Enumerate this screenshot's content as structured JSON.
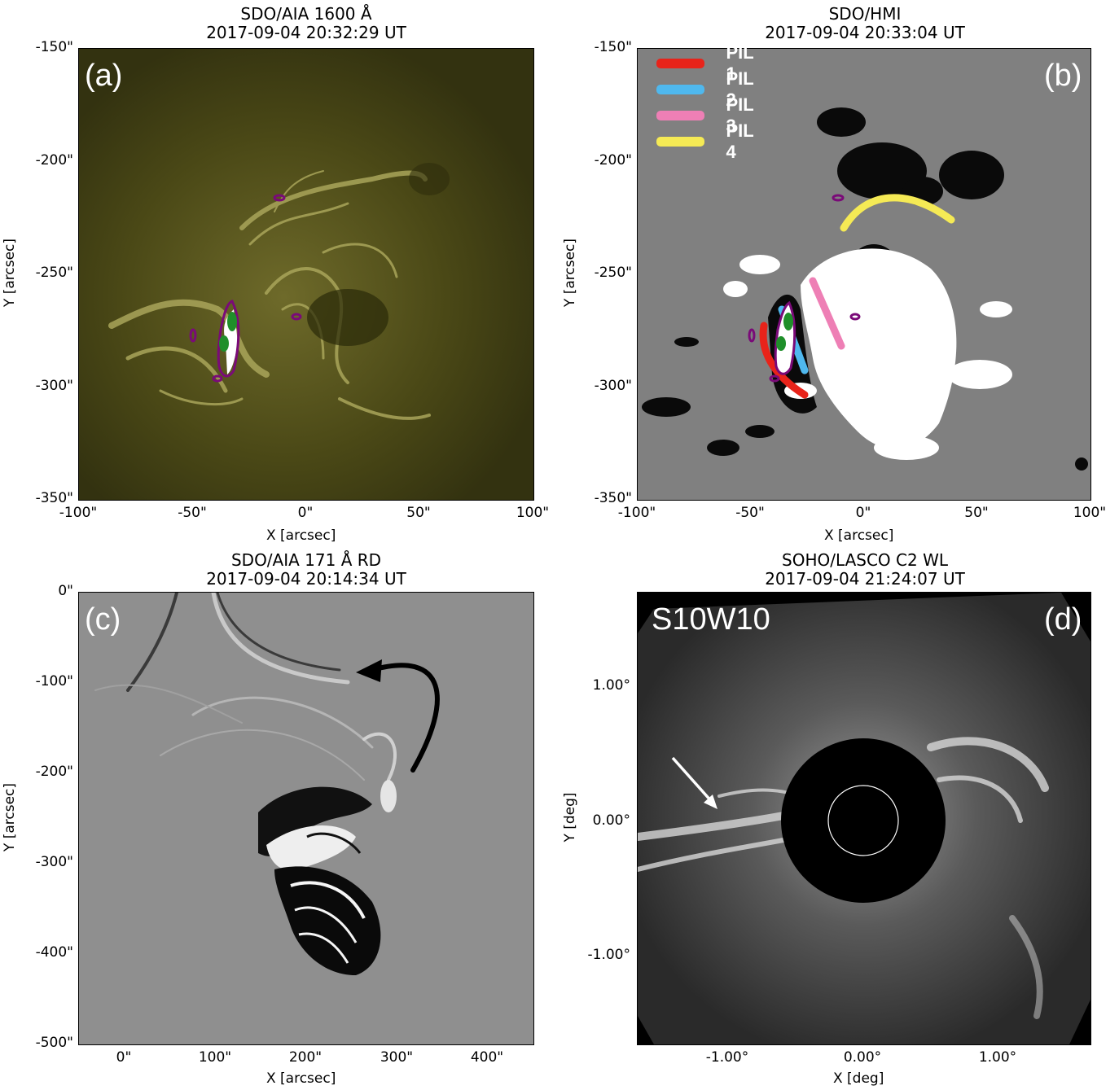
{
  "panels": {
    "a": {
      "title": "SDO/AIA 1600 Å",
      "time": "2017-09-04 20:32:29 UT",
      "label": "(a)",
      "xlabel": "X [arcsec]",
      "ylabel": "Y [arcsec]",
      "xticks": [
        "-100\"",
        "-50\"",
        "0\"",
        "50\"",
        "100\""
      ],
      "yticks": [
        "-150\"",
        "-200\"",
        "-250\"",
        "-300\"",
        "-350\""
      ]
    },
    "b": {
      "title": "SDO/HMI",
      "time": "2017-09-04 20:33:04 UT",
      "label": "(b)",
      "xlabel": "X [arcsec]",
      "ylabel": "Y [arcsec]",
      "xticks": [
        "-100\"",
        "-50\"",
        "0\"",
        "50\"",
        "100\""
      ],
      "yticks": [
        "-150\"",
        "-200\"",
        "-250\"",
        "-300\"",
        "-350\""
      ],
      "legend": [
        {
          "name": "PIL 1",
          "color": "#e8231a"
        },
        {
          "name": "PIL 2",
          "color": "#4fb8ee"
        },
        {
          "name": "PIL 3",
          "color": "#ee7fb5"
        },
        {
          "name": "PIL 4",
          "color": "#f5ea55"
        }
      ]
    },
    "c": {
      "title": "SDO/AIA 171 Å RD",
      "time": "2017-09-04 20:14:34 UT",
      "label": "(c)",
      "xlabel": "X [arcsec]",
      "ylabel": "Y [arcsec]",
      "xticks": [
        "0\"",
        "100\"",
        "200\"",
        "300\"",
        "400\""
      ],
      "yticks": [
        "0\"",
        "-100\"",
        "-200\"",
        "-300\"",
        "-400\"",
        "-500\""
      ]
    },
    "d": {
      "title": "SOHO/LASCO C2 WL",
      "time": "2017-09-04 21:24:07 UT",
      "label": "(d)",
      "location": "S10W10",
      "xlabel": "X [deg]",
      "ylabel": "Y [deg]",
      "xticks": [
        "-1.00°",
        "0.00°",
        "1.00°"
      ],
      "yticks": [
        "1.00°",
        "0.00°",
        "-1.00°"
      ]
    }
  },
  "colors": {
    "aia1600": "#3f3d12",
    "hmi_gray": "#808080",
    "purple_contour": "#7a0a78",
    "green_contour": "#1f8f2a"
  }
}
